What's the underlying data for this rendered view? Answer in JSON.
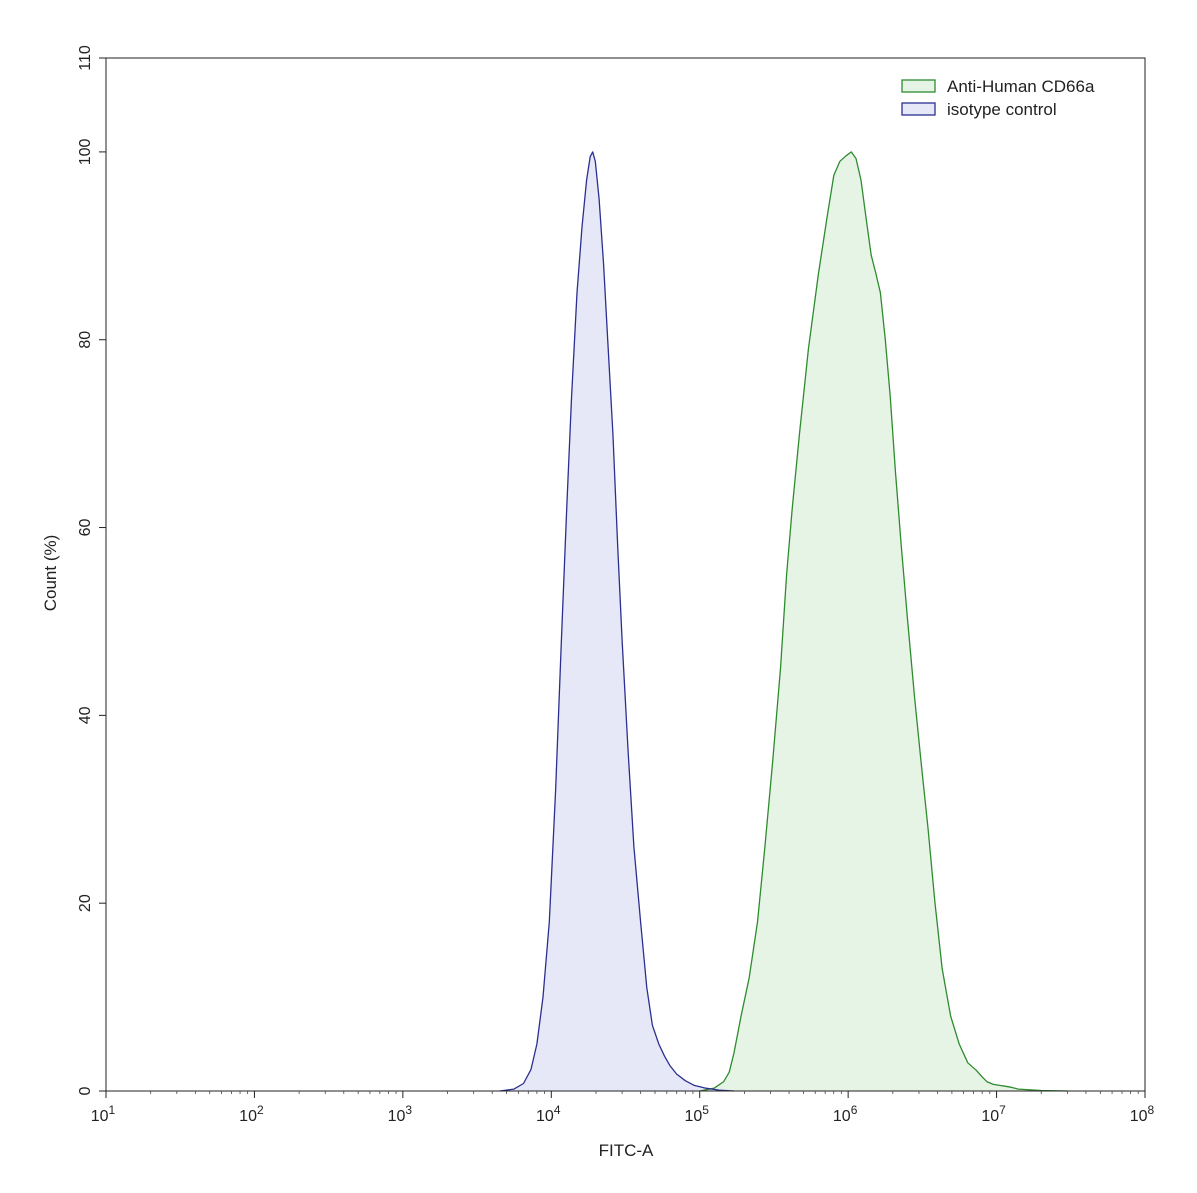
{
  "chart_data": {
    "type": "area",
    "title": "",
    "xlabel": "FITC-A",
    "ylabel": "Count  (%)",
    "x_scale": "log",
    "xlim": [
      10,
      100000000
    ],
    "ylim": [
      0,
      110
    ],
    "x_ticks": [
      {
        "base": "10",
        "exp": "1",
        "value": 10
      },
      {
        "base": "10",
        "exp": "2",
        "value": 100
      },
      {
        "base": "10",
        "exp": "3",
        "value": 1000
      },
      {
        "base": "10",
        "exp": "4",
        "value": 10000
      },
      {
        "base": "10",
        "exp": "5",
        "value": 100000
      },
      {
        "base": "10",
        "exp": "6",
        "value": 1000000
      },
      {
        "base": "10",
        "exp": "7",
        "value": 10000000
      },
      {
        "base": "10",
        "exp": "8",
        "value": 100000000
      }
    ],
    "y_ticks": [
      "0",
      "20",
      "40",
      "60",
      "80",
      "100",
      "110"
    ],
    "grid": false,
    "legend_position": "top-right",
    "series": [
      {
        "name": "Anti-Human CD66a",
        "line_color": "#2e8b2e",
        "fill_color": "#e6f4e6",
        "points": [
          [
            100000,
            0
          ],
          [
            125000,
            0.3
          ],
          [
            145000,
            1
          ],
          [
            158000,
            2
          ],
          [
            170000,
            4
          ],
          [
            190000,
            8
          ],
          [
            215000,
            12
          ],
          [
            245000,
            18
          ],
          [
            275000,
            26
          ],
          [
            310000,
            35
          ],
          [
            350000,
            45
          ],
          [
            385000,
            55
          ],
          [
            420000,
            62
          ],
          [
            470000,
            70
          ],
          [
            540000,
            79
          ],
          [
            630000,
            87
          ],
          [
            720000,
            93
          ],
          [
            800000,
            97.5
          ],
          [
            880000,
            99
          ],
          [
            970000,
            99.6
          ],
          [
            1050000,
            100
          ],
          [
            1130000,
            99.3
          ],
          [
            1220000,
            97
          ],
          [
            1320000,
            93
          ],
          [
            1430000,
            89
          ],
          [
            1540000,
            87
          ],
          [
            1650000,
            85
          ],
          [
            1780000,
            80
          ],
          [
            1920000,
            74
          ],
          [
            2080000,
            66
          ],
          [
            2280000,
            58
          ],
          [
            2520000,
            50
          ],
          [
            2800000,
            42
          ],
          [
            3100000,
            35
          ],
          [
            3450000,
            28
          ],
          [
            3850000,
            20
          ],
          [
            4300000,
            13
          ],
          [
            4900000,
            8
          ],
          [
            5600000,
            5
          ],
          [
            6400000,
            3
          ],
          [
            7300000,
            2.2
          ],
          [
            8000000,
            1.5
          ],
          [
            8600000,
            1
          ],
          [
            9500000,
            0.7
          ],
          [
            10500000,
            0.6
          ],
          [
            11500000,
            0.5
          ],
          [
            12500000,
            0.4
          ],
          [
            14000000,
            0.2
          ],
          [
            20000000,
            0.05
          ],
          [
            30000000,
            0
          ]
        ]
      },
      {
        "name": "isotype control",
        "line_color": "#2b2f8f",
        "fill_color": "#e6e8f8",
        "points": [
          [
            4500,
            0
          ],
          [
            5600,
            0.2
          ],
          [
            6500,
            0.8
          ],
          [
            7300,
            2.3
          ],
          [
            8000,
            5
          ],
          [
            8800,
            10
          ],
          [
            9700,
            18
          ],
          [
            10700,
            32
          ],
          [
            11700,
            48
          ],
          [
            12700,
            62
          ],
          [
            13700,
            74
          ],
          [
            14900,
            85
          ],
          [
            16100,
            92
          ],
          [
            17300,
            97
          ],
          [
            18300,
            99.5
          ],
          [
            19000,
            100
          ],
          [
            19800,
            99
          ],
          [
            21000,
            95
          ],
          [
            22500,
            88
          ],
          [
            24000,
            80
          ],
          [
            26000,
            70
          ],
          [
            28000,
            58
          ],
          [
            30000,
            48
          ],
          [
            33000,
            36
          ],
          [
            36000,
            26
          ],
          [
            40000,
            18
          ],
          [
            44000,
            11
          ],
          [
            48000,
            7
          ],
          [
            53000,
            5
          ],
          [
            58000,
            3.7
          ],
          [
            63000,
            2.7
          ],
          [
            70000,
            1.8
          ],
          [
            80000,
            1.1
          ],
          [
            92000,
            0.6
          ],
          [
            110000,
            0.3
          ],
          [
            135000,
            0.1
          ],
          [
            170000,
            0
          ]
        ]
      }
    ]
  }
}
